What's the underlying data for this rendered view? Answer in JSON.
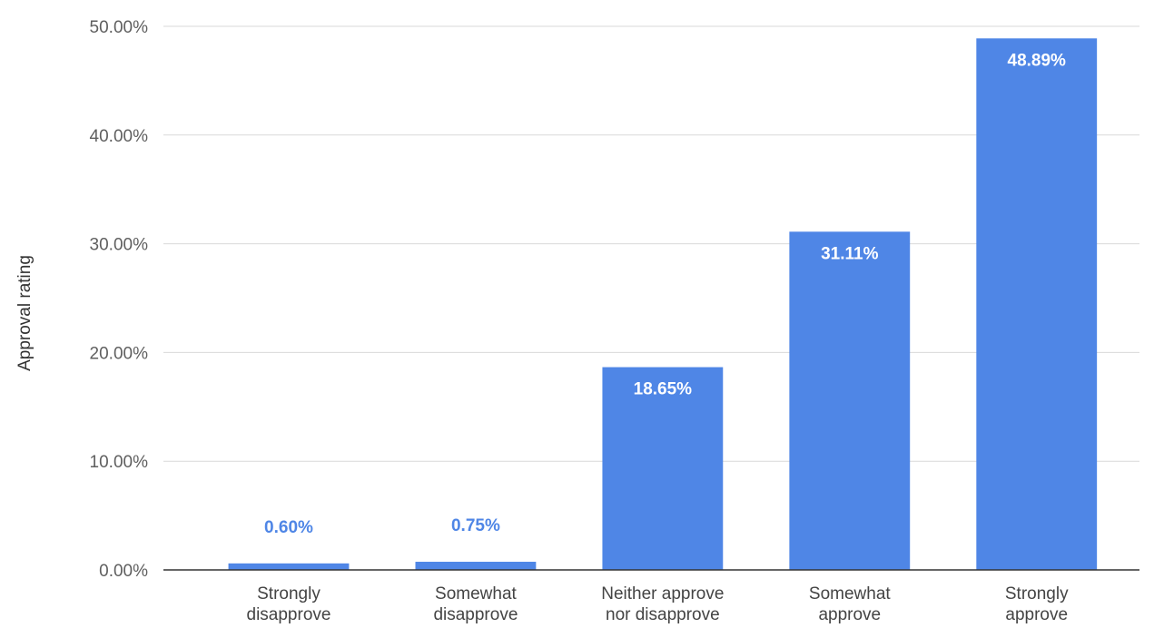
{
  "chart_data": {
    "type": "bar",
    "categories": [
      [
        "Strongly",
        "disapprove"
      ],
      [
        "Somewhat",
        "disapprove"
      ],
      [
        "Neither approve",
        "nor disapprove"
      ],
      [
        "Somewhat",
        "approve"
      ],
      [
        "Strongly",
        "approve"
      ]
    ],
    "values": [
      0.6,
      0.75,
      18.65,
      31.11,
      48.89
    ],
    "data_labels": [
      "0.60%",
      "0.75%",
      "18.65%",
      "31.11%",
      "48.89%"
    ],
    "yticks": [
      "0.00%",
      "10.00%",
      "20.00%",
      "30.00%",
      "40.00%",
      "50.00%"
    ],
    "ylabel": "Approval rating",
    "xlabel": "",
    "title": "",
    "ylim": [
      0,
      50
    ],
    "grid": true,
    "colors": {
      "bar": "#4f86e6",
      "label_inside": "#ffffff",
      "label_outside": "#4f86e6",
      "grid": "#d9d9d9",
      "axis": "#333333"
    }
  }
}
